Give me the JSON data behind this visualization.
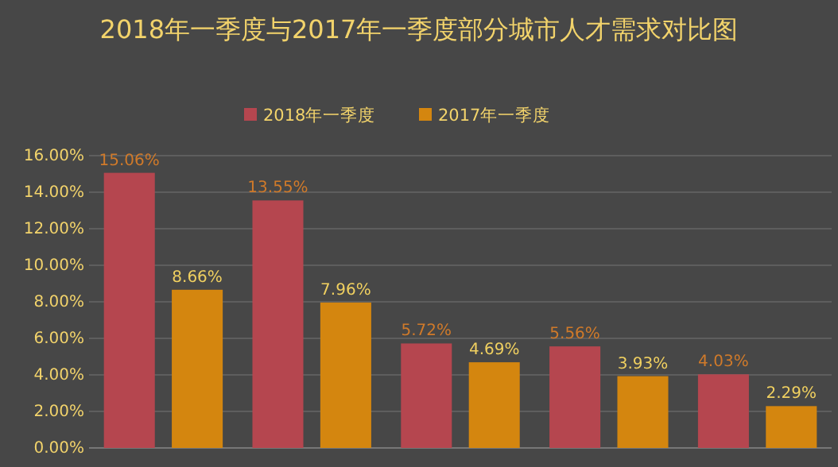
{
  "chart_data": {
    "type": "bar",
    "title": "2018年一季度与2017年一季度部分城市人才需求对比图",
    "categories": [
      null,
      null,
      null,
      null,
      null
    ],
    "series": [
      {
        "name": "2018年一季度",
        "color": "#b5464f",
        "values": [
          15.06,
          13.55,
          5.72,
          5.56,
          4.03
        ],
        "value_labels": [
          "15.06%",
          "13.55%",
          "5.72%",
          "5.56%",
          "4.03%"
        ]
      },
      {
        "name": "2017年一季度",
        "color": "#d4860f",
        "values": [
          8.66,
          7.96,
          4.69,
          3.93,
          2.29
        ],
        "value_labels": [
          "8.66%",
          "7.96%",
          "4.69%",
          "3.93%",
          "2.29%"
        ]
      }
    ],
    "ylim": [
      0,
      16
    ],
    "yticks": [
      {
        "value": 0,
        "label": "0.00%"
      },
      {
        "value": 2,
        "label": "2.00%"
      },
      {
        "value": 4,
        "label": "4.00%"
      },
      {
        "value": 6,
        "label": "6.00%"
      },
      {
        "value": 8,
        "label": "8.00%"
      },
      {
        "value": 10,
        "label": "10.00%"
      },
      {
        "value": 12,
        "label": "12.00%"
      },
      {
        "value": 14,
        "label": "14.00%"
      },
      {
        "value": 16,
        "label": "16.00%"
      }
    ],
    "grid": "y",
    "legend": "top"
  }
}
